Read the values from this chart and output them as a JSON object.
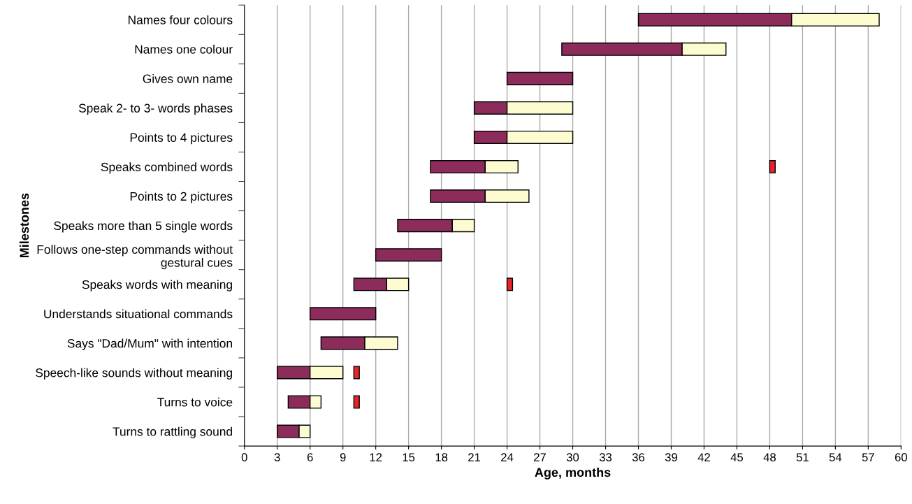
{
  "chart_data": {
    "type": "bar",
    "orientation": "horizontal",
    "xlabel": "Age, months",
    "ylabel": "Milestones",
    "categories": [
      "Names four colours",
      "Names one colour",
      "Gives own name",
      "Speak 2- to 3- words phases",
      "Points to 4 pictures",
      "Speaks combined words",
      "Points to 2 pictures",
      "Speaks more than 5 single words",
      "Follows one-step commands without\ngestural cues",
      "Speaks words with meaning",
      "Understands situational commands",
      "Says \"Dad/Mum\" with intention",
      "Speech-like sounds without meaning",
      "Turns to voice",
      "Turns to rattling sound"
    ],
    "series": [
      {
        "color": "#8b2c5a",
        "base": [
          36,
          29,
          24,
          21,
          21,
          17,
          17,
          14,
          12,
          10,
          6,
          7,
          3,
          4,
          3
        ],
        "values": [
          14,
          11,
          6,
          3,
          3,
          5,
          5,
          5,
          6,
          3,
          6,
          4,
          3,
          2,
          2
        ]
      },
      {
        "color": "#fdfbd0",
        "base": [
          50,
          40,
          null,
          24,
          24,
          22,
          22,
          19,
          null,
          13,
          null,
          11,
          6,
          6,
          5
        ],
        "values": [
          8,
          4,
          null,
          6,
          6,
          3,
          4,
          2,
          null,
          2,
          null,
          3,
          3,
          1,
          1
        ]
      },
      {
        "color": "#e8242a",
        "base": [
          null,
          null,
          null,
          null,
          null,
          48,
          null,
          null,
          null,
          24,
          null,
          null,
          10,
          10,
          null
        ],
        "values": [
          null,
          null,
          null,
          null,
          null,
          0.5,
          null,
          null,
          null,
          0.5,
          null,
          null,
          0.5,
          0.5,
          null
        ]
      }
    ],
    "xlim": [
      0,
      60
    ],
    "xticks": [
      0,
      3,
      6,
      9,
      12,
      15,
      18,
      21,
      24,
      27,
      30,
      33,
      36,
      39,
      42,
      45,
      48,
      51,
      54,
      57,
      60
    ],
    "grid": "x"
  }
}
